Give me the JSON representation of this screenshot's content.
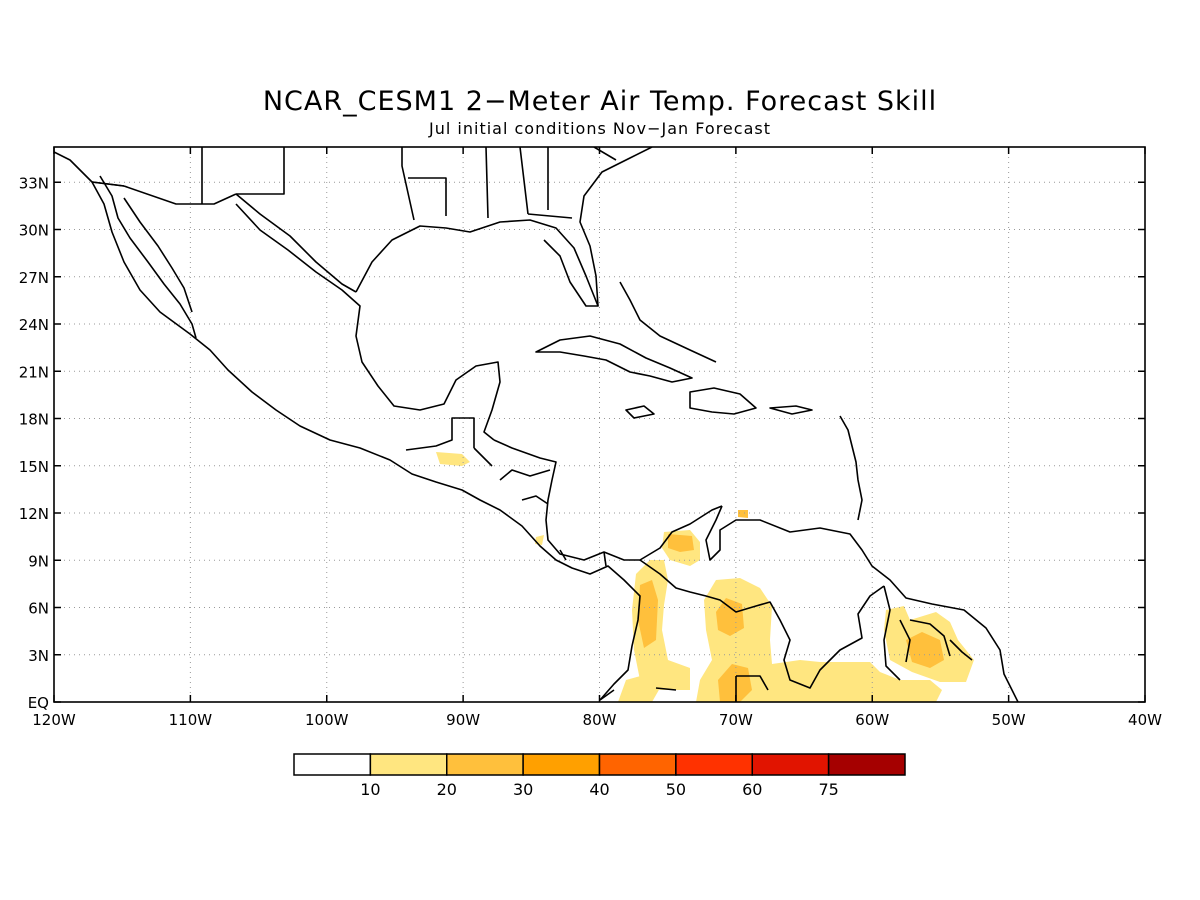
{
  "title": "NCAR_CESM1 2−Meter Air Temp. Forecast Skill",
  "subtitle": "Jul initial conditions   Nov−Jan Forecast",
  "axes": {
    "lon_labels": [
      "120W",
      "110W",
      "100W",
      "90W",
      "80W",
      "70W",
      "60W",
      "50W",
      "40W"
    ],
    "lat_labels": [
      "EQ",
      "3N",
      "6N",
      "9N",
      "12N",
      "15N",
      "18N",
      "21N",
      "24N",
      "27N",
      "30N",
      "33N"
    ]
  },
  "colorbar": {
    "colors": [
      "#ffffff",
      "#ffe680",
      "#ffc03c",
      "#ffa000",
      "#ff6400",
      "#ff3200",
      "#e11400",
      "#a50000"
    ],
    "labels": [
      "10",
      "20",
      "30",
      "40",
      "50",
      "60",
      "75"
    ]
  },
  "colors": {
    "coast": "#000000",
    "grid": "#999999"
  }
}
